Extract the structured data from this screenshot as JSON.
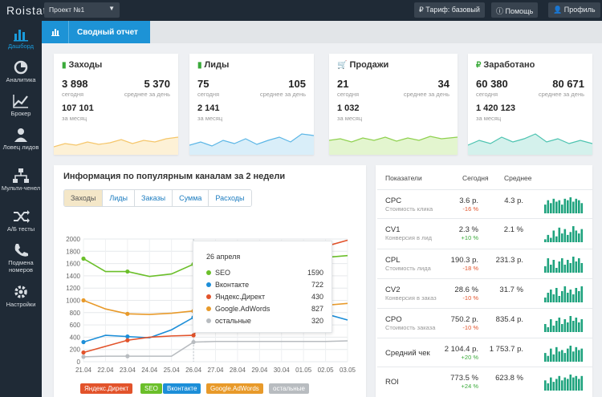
{
  "app": {
    "logo": "Roistat"
  },
  "topbar": {
    "project": "Проект №1",
    "tariff": "Тариф: базовый",
    "help": "Помощь",
    "profile": "Профиль"
  },
  "sidebar": {
    "items": [
      {
        "label": "Дашборд",
        "icon": "bar-chart-icon"
      },
      {
        "label": "Аналитика",
        "icon": "pie-chart-icon"
      },
      {
        "label": "Брокер",
        "icon": "trend-line-icon"
      },
      {
        "label": "Ловец лидов",
        "icon": "person-icon"
      },
      {
        "label": "Мульти-ченел",
        "icon": "hierarchy-icon"
      },
      {
        "label": "А/Б тесты",
        "icon": "shuffle-icon"
      },
      {
        "label": "Подмена номеров",
        "icon": "phone-icon"
      },
      {
        "label": "Настройки",
        "icon": "gear-icon"
      }
    ]
  },
  "header": {
    "title": "Сводный отчет"
  },
  "kpis": [
    {
      "title": "Заходы",
      "icon": "chart-icon",
      "today": "3 898",
      "today_label": "сегодня",
      "avg": "5 370",
      "avg_label": "среднее за день",
      "month": "107 101",
      "month_label": "за месяц",
      "color": "#f5c66a"
    },
    {
      "title": "Лиды",
      "icon": "chart-icon",
      "today": "75",
      "today_label": "сегодня",
      "avg": "105",
      "avg_label": "среднее за день",
      "month": "2 141",
      "month_label": "за месяц",
      "color": "#5bb6e6"
    },
    {
      "title": "Продажи",
      "icon": "cart-icon",
      "today": "21",
      "today_label": "сегодня",
      "avg": "34",
      "avg_label": "среднее за день",
      "month": "1 032",
      "month_label": "за месяц",
      "color": "#8fd14f"
    },
    {
      "title": "Заработано",
      "icon": "ruble-icon",
      "today": "60 380",
      "today_label": "сегодня",
      "avg": "80 671",
      "avg_label": "среднее за день",
      "month": "1 420 123",
      "month_label": "за месяц",
      "color": "#4cc3b0"
    }
  ],
  "channels": {
    "title": "Информация по популярным каналам за 2 недели",
    "tabs": [
      "Заходы",
      "Лиды",
      "Заказы",
      "Сумма",
      "Расходы"
    ],
    "active_tab": 0,
    "tooltip": {
      "date": "26 апреля",
      "rows": [
        {
          "name": "SEO",
          "value": "1590",
          "color": "#6bbf2a"
        },
        {
          "name": "Вконтакте",
          "value": "722",
          "color": "#1c8ed8"
        },
        {
          "name": "Яндекс.Директ",
          "value": "430",
          "color": "#e2532b"
        },
        {
          "name": "Google.AdWords",
          "value": "827",
          "color": "#e89a2a"
        },
        {
          "name": "остальные",
          "value": "320",
          "color": "#b8bcc0"
        }
      ]
    },
    "legend": [
      {
        "name": "Яндекс.Директ",
        "color": "#e2532b"
      },
      {
        "name": "SEO",
        "color": "#6bbf2a"
      },
      {
        "name": "Вконтакте",
        "color": "#1c8ed8"
      },
      {
        "name": "Google.AdWords",
        "color": "#e89a2a"
      },
      {
        "name": "остальные",
        "color": "#b8bcc0"
      }
    ]
  },
  "chart_data": {
    "type": "line",
    "x": [
      "21.04",
      "22.04",
      "23.04",
      "24.04",
      "25.04",
      "26.04",
      "27.04",
      "28.04",
      "29.04",
      "30.04",
      "01.05",
      "02.05",
      "03.05"
    ],
    "ylim": [
      0,
      2000
    ],
    "yticks": [
      0,
      200,
      400,
      600,
      800,
      1000,
      1200,
      1400,
      1600,
      1800,
      2000
    ],
    "grid": true,
    "series": [
      {
        "name": "SEO",
        "color": "#6bbf2a",
        "values": [
          1680,
          1470,
          1470,
          1390,
          1430,
          1590,
          1620,
          1660,
          1690,
          1620,
          1660,
          1700,
          1730
        ]
      },
      {
        "name": "Вконтакте",
        "color": "#1c8ed8",
        "values": [
          320,
          430,
          410,
          390,
          520,
          722,
          1000,
          1090,
          1000,
          890,
          890,
          780,
          680
        ]
      },
      {
        "name": "Яндекс.Директ",
        "color": "#e2532b",
        "values": [
          150,
          250,
          350,
          400,
          420,
          430,
          1000,
          1290,
          1530,
          1660,
          1780,
          1880,
          1980
        ]
      },
      {
        "name": "Google.AdWords",
        "color": "#e89a2a",
        "values": [
          1000,
          860,
          780,
          770,
          790,
          827,
          830,
          840,
          860,
          870,
          900,
          920,
          950
        ]
      },
      {
        "name": "остальные",
        "color": "#b8bcc0",
        "values": [
          80,
          90,
          90,
          90,
          90,
          320,
          330,
          330,
          330,
          330,
          330,
          330,
          340
        ]
      }
    ]
  },
  "metrics": {
    "headers": {
      "name": "Показатели",
      "today": "Сегодня",
      "avg": "Среднее"
    },
    "rows": [
      {
        "name": "CPC",
        "sub": "Стоимость клика",
        "today": "3.6 р.",
        "delta": "-16 %",
        "delta_color": "#e2532b",
        "avg": "4.3 р.",
        "bars": [
          6,
          9,
          7,
          10,
          8,
          9,
          6,
          10,
          9,
          11,
          8,
          10,
          9,
          7
        ]
      },
      {
        "name": "CV1",
        "sub": "Конверсия в лид",
        "today": "2.3 %",
        "delta": "+10 %",
        "delta_color": "#3aaa3a",
        "avg": "2.1 %",
        "bars": [
          2,
          5,
          3,
          8,
          4,
          10,
          6,
          9,
          5,
          7,
          11,
          8,
          6,
          9
        ]
      },
      {
        "name": "CPL",
        "sub": "Стоимость лида",
        "today": "190.3 р.",
        "delta": "-18 %",
        "delta_color": "#e2532b",
        "avg": "231.3 р.",
        "bars": [
          4,
          9,
          5,
          8,
          3,
          7,
          9,
          5,
          8,
          6,
          10,
          7,
          9,
          6
        ]
      },
      {
        "name": "CV2",
        "sub": "Конверсия в заказ",
        "today": "28.6 %",
        "delta": "-10 %",
        "delta_color": "#e2532b",
        "avg": "31.7 %",
        "bars": [
          3,
          6,
          8,
          5,
          9,
          4,
          7,
          10,
          6,
          8,
          5,
          9,
          7,
          10
        ]
      },
      {
        "name": "CPO",
        "sub": "Стоимость заказа",
        "today": "750.2 р.",
        "delta": "-10 %",
        "delta_color": "#e2532b",
        "avg": "835.4 р.",
        "bars": [
          5,
          3,
          8,
          4,
          7,
          9,
          5,
          8,
          6,
          10,
          7,
          9,
          6,
          8
        ]
      },
      {
        "name": "Средний чек",
        "sub": "",
        "today": "2 104.4 р.",
        "delta": "+20 %",
        "delta_color": "#3aaa3a",
        "avg": "1 753.7 р.",
        "bars": [
          6,
          4,
          9,
          5,
          10,
          7,
          8,
          6,
          9,
          11,
          7,
          10,
          8,
          9
        ]
      },
      {
        "name": "ROI",
        "sub": "",
        "today": "773.5 %",
        "delta": "+24 %",
        "delta_color": "#3aaa3a",
        "avg": "623.8 %",
        "bars": [
          7,
          5,
          9,
          6,
          8,
          10,
          7,
          9,
          8,
          11,
          9,
          10,
          8,
          10
        ]
      }
    ]
  }
}
